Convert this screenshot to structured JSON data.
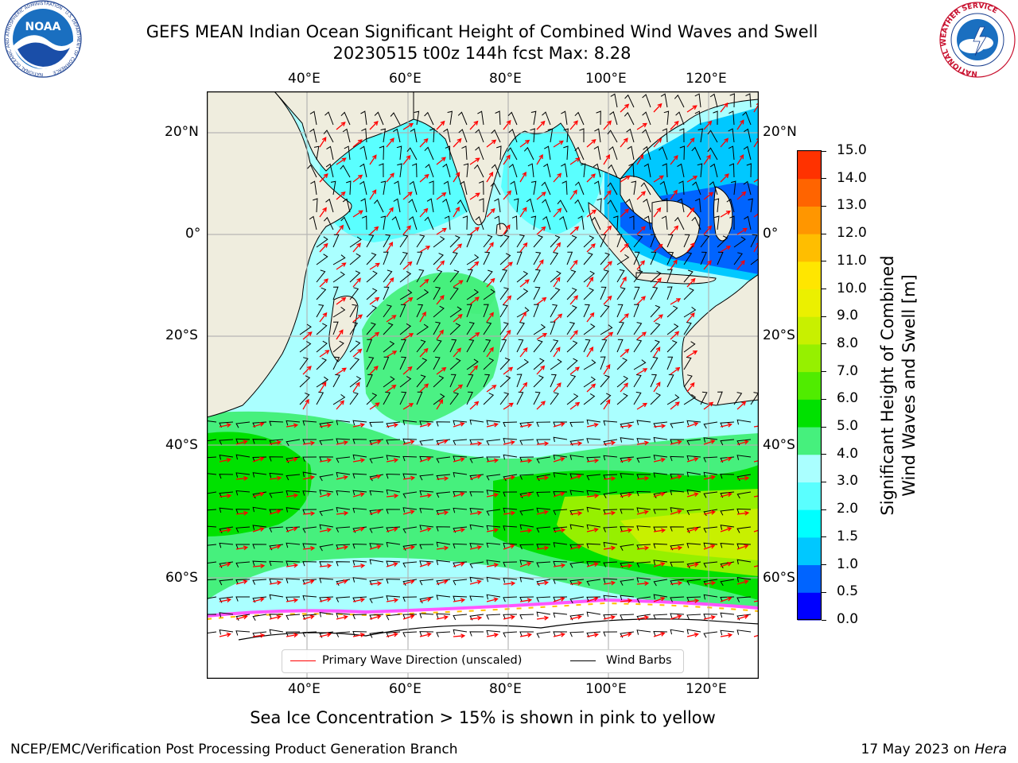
{
  "header": {
    "title_line1": "GEFS MEAN Indian Ocean Significant Height of Combined Wind Waves and Swell",
    "title_line2": "20230515 t00z 144h fcst   Max: 8.28",
    "noaa_logo_text": "NOAA",
    "noaa_ring_text": "NATIONAL OCEANIC AND ATMOSPHERIC ADMINISTRATION · U.S. DEPARTMENT OF COMMERCE",
    "nws_ring_text": "NATIONAL WEATHER SERVICE"
  },
  "map": {
    "top_lon_labels": [
      "40°E",
      "60°E",
      "80°E",
      "100°E",
      "120°E"
    ],
    "bottom_lon_labels": [
      "40°E",
      "60°E",
      "80°E",
      "100°E",
      "120°E"
    ],
    "left_lat_labels": [
      "20°N",
      "0°",
      "20°S",
      "40°S",
      "60°S"
    ],
    "right_lat_labels": [
      "20°N",
      "0°",
      "20°S",
      "40°S",
      "60°S"
    ],
    "colors": {
      "land": "#efedde",
      "ice": "#ffffff",
      "wave_arrow": "#ff0000",
      "wind_barb": "#000000"
    }
  },
  "legend": {
    "wave_label": "Primary Wave Direction (unscaled)",
    "wind_label": "Wind Barbs"
  },
  "colorbar": {
    "title_line1": "Significant Height of Combined",
    "title_line2": "Wind Waves and Swell [m]",
    "tick_labels": [
      "0.0",
      "0.5",
      "1.0",
      "1.5",
      "2.0",
      "3.0",
      "4.0",
      "5.0",
      "6.0",
      "7.0",
      "8.0",
      "9.0",
      "10.0",
      "11.0",
      "12.0",
      "13.0",
      "14.0",
      "15.0"
    ],
    "colors": [
      "#0000ff",
      "#0064ff",
      "#00c8ff",
      "#00ffff",
      "#5affff",
      "#aaffff",
      "#46f07d",
      "#00e100",
      "#50ec00",
      "#96f000",
      "#c8f000",
      "#ebf000",
      "#ffe600",
      "#ffbe00",
      "#ff9600",
      "#ff6400",
      "#ff3200",
      "#ff0000"
    ]
  },
  "caption": "Sea Ice Concentration > 15% is shown in pink to yellow",
  "footer": {
    "left": "NCEP/EMC/Verification Post Processing Product Generation Branch",
    "right_date": "17 May 2023 on",
    "right_host": "Hera"
  }
}
